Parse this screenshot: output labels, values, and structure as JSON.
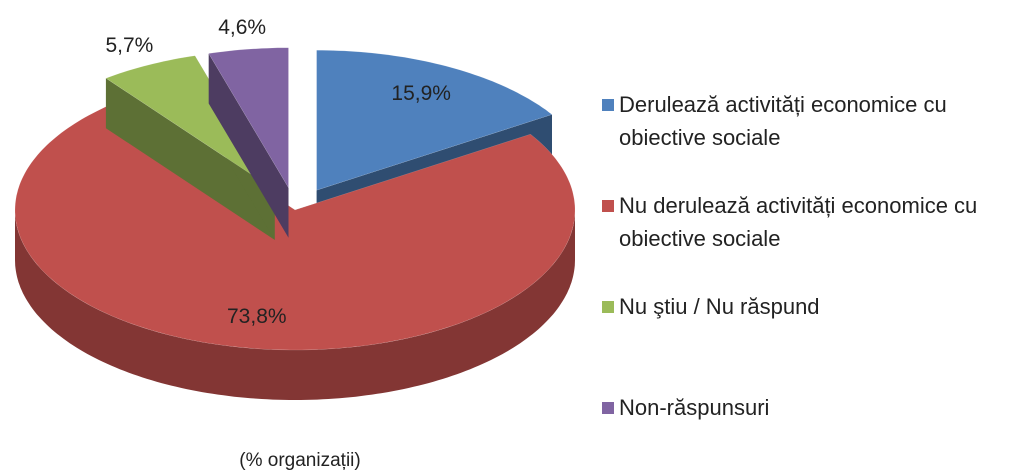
{
  "chart_data": {
    "type": "pie",
    "categories": [
      "Derulează activități economice cu obiective sociale",
      "Nu derulează activități economice cu obiective sociale",
      "Nu ştiu / Nu răspund",
      "Non-răspunsuri"
    ],
    "values": [
      15.9,
      73.8,
      5.7,
      4.6
    ],
    "value_labels": [
      "15,9%",
      "73,8%",
      "5,7%",
      "4,6%"
    ],
    "colors": [
      "#4f81bd",
      "#c0504d",
      "#9bbb59",
      "#8064a2"
    ],
    "caption": "(% organizații)",
    "legend": "right"
  }
}
